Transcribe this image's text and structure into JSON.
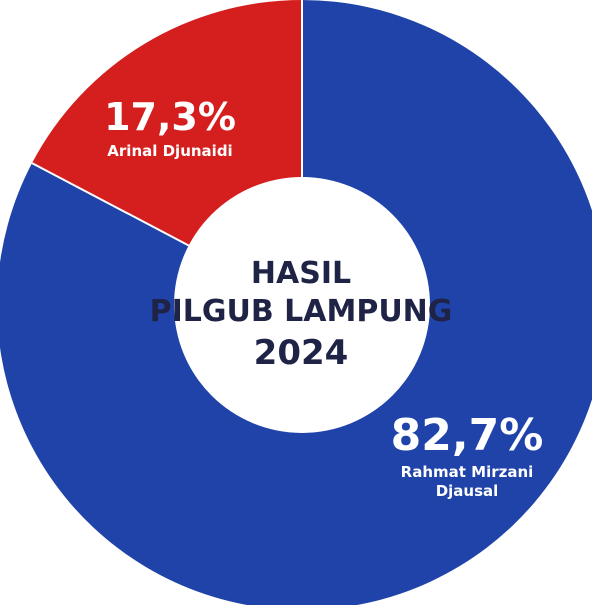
{
  "center": {
    "line1": "HASIL",
    "line2": "PILGUB LAMPUNG",
    "line3": "2024"
  },
  "colors": {
    "blue": "#1f43a8",
    "red": "#d51f1f",
    "center_text": "#1f2346"
  },
  "chart_data": {
    "type": "pie",
    "title": "HASIL PILGUB LAMPUNG 2024",
    "variant": "donut",
    "slices": [
      {
        "name": "Rahmat Mirzani Djausal",
        "name_lines": [
          "Rahmat Mirzani",
          "Djausal"
        ],
        "value": 82.7,
        "label": "82,7%",
        "color": "#1f43a8"
      },
      {
        "name": "Arinal Djunaidi",
        "name_lines": [
          "Arinal Djunaidi"
        ],
        "value": 17.3,
        "label": "17,3%",
        "color": "#d51f1f"
      }
    ]
  }
}
